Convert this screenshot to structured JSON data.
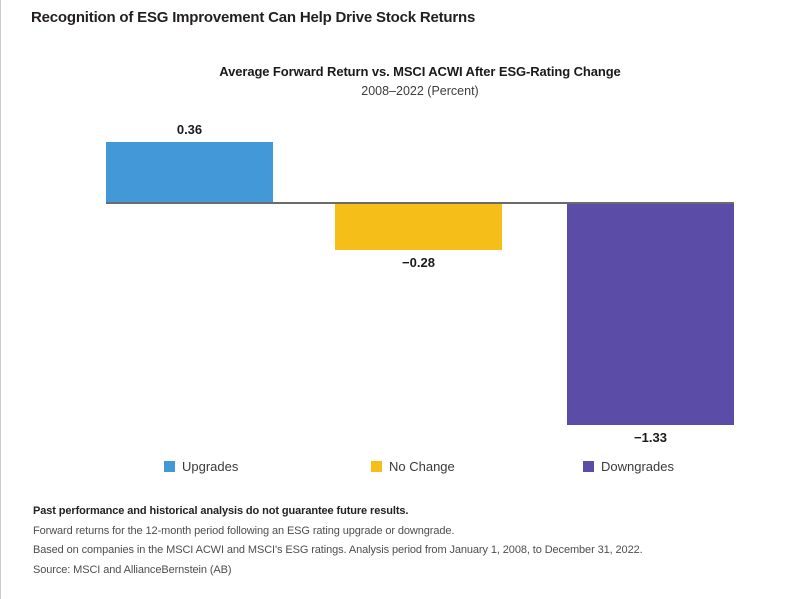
{
  "page": {
    "title": "Recognition of ESG Improvement Can Help Drive Stock Returns"
  },
  "chart_data": {
    "type": "bar",
    "title": "Average Forward Return vs. MSCI ACWI After ESG-Rating Change",
    "subtitle": "2008–2022 (Percent)",
    "categories": [
      "Upgrades",
      "No Change",
      "Downgrades"
    ],
    "values": [
      0.36,
      -0.28,
      -1.33
    ],
    "value_labels": [
      "0.36",
      "−0.28",
      "−1.33"
    ],
    "colors": [
      "#4398D7",
      "#F5BE19",
      "#5A4CA7"
    ],
    "ylim": [
      -1.5,
      0.5
    ],
    "grid": false,
    "axis_line_color": "#6b6b6b",
    "legend_position": "bottom",
    "legend": [
      {
        "label": "Upgrades",
        "color": "#4398D7"
      },
      {
        "label": "No Change",
        "color": "#F5BE19"
      },
      {
        "label": "Downgrades",
        "color": "#5A4CA7"
      }
    ]
  },
  "footnotes": {
    "disclaimer": "Past performance and historical analysis do not guarantee future results.",
    "line1": "Forward returns for the 12-month period following an ESG rating upgrade or downgrade.",
    "line2": "Based on companies in the MSCI ACWI and MSCI's ESG ratings. Analysis period from January 1, 2008, to December 31, 2022.",
    "line3": "Source: MSCI and AllianceBernstein (AB)"
  }
}
